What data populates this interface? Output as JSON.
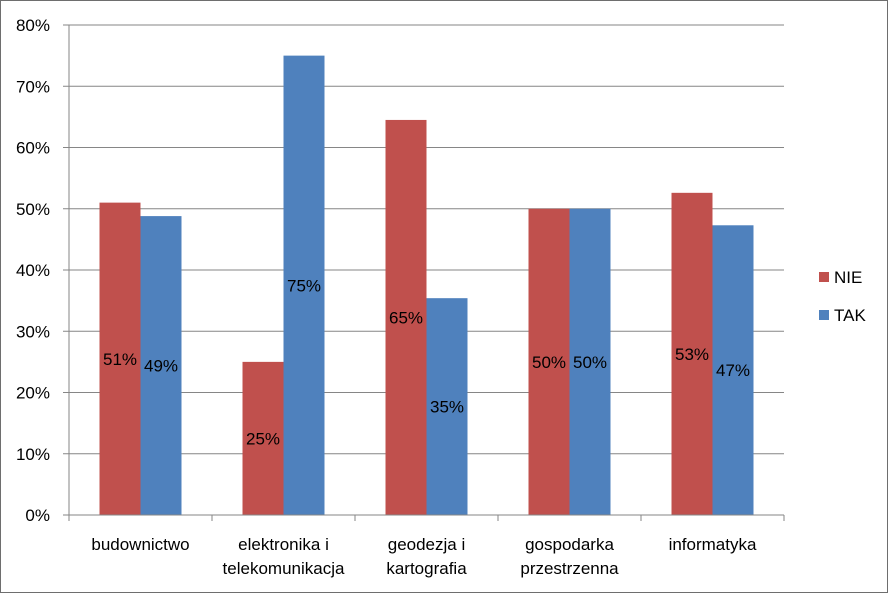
{
  "chart_data": {
    "type": "bar",
    "categories": [
      [
        "budownictwo"
      ],
      [
        "elektronika i",
        "telekomunikacja"
      ],
      [
        "geodezja i",
        "kartografia"
      ],
      [
        "gospodarka",
        "przestrzenna"
      ],
      [
        "informatyka"
      ]
    ],
    "series": [
      {
        "name": "NIE",
        "color": "#c0504d",
        "values": [
          51,
          25,
          64.5,
          50,
          52.6
        ],
        "labels": [
          "51%",
          "25%",
          "65%",
          "50%",
          "53%"
        ]
      },
      {
        "name": "TAK",
        "color": "#4f81bd",
        "values": [
          48.8,
          75,
          35.4,
          50,
          47.3
        ],
        "labels": [
          "49%",
          "75%",
          "35%",
          "50%",
          "47%"
        ]
      }
    ],
    "yticks": [
      "0%",
      "10%",
      "20%",
      "30%",
      "40%",
      "50%",
      "60%",
      "70%",
      "80%"
    ],
    "ylim": [
      0,
      80
    ],
    "grid": true,
    "legend_position": "right"
  }
}
